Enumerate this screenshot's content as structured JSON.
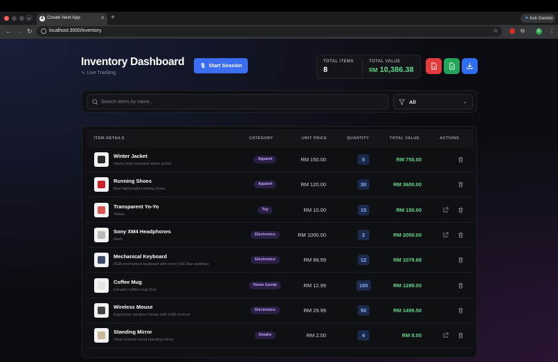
{
  "browser": {
    "tab_title": "Create Next App",
    "tab_favicon": "A",
    "url": "localhost:3000/inventory",
    "gemini_label": "Ask Gemini",
    "profile_initial": "E",
    "colors": {
      "close": "#ff5f57",
      "accent": "#8ab4f8"
    }
  },
  "header": {
    "title": "Inventory Dashboard",
    "subtitle": "Live Tracking",
    "start_session_label": "Start Session"
  },
  "stats": {
    "total_items_label": "TOTAL ITEMS",
    "total_items_value": "8",
    "total_value_label": "TOTAL VALUE",
    "total_value_currency": "RM",
    "total_value_amount": "10,386.38"
  },
  "export_buttons": {
    "pdf_icon": "pdf-file-icon",
    "excel_icon": "excel-file-icon",
    "download_icon": "download-icon",
    "colors": {
      "pdf": "#e23b3b",
      "excel": "#22a559",
      "download": "#2f6ef0"
    }
  },
  "search": {
    "placeholder": "Search items by name...",
    "value": "",
    "filter_value": "All"
  },
  "table": {
    "headers": {
      "item": "ITEM DETAILS",
      "category": "CATEGORY",
      "price": "UNIT PRICE",
      "quantity": "QUANTITY",
      "total": "TOTAL VALUE",
      "actions": "ACTIONS"
    },
    "rows": [
      {
        "name": "Winter Jacket",
        "desc": "Heavy-duty insulated winter jacket",
        "category": "Apparel",
        "price": "RM 150.00",
        "qty": "5",
        "total": "RM 750.00",
        "has_link": false,
        "thumb_color": "#2b2b2b"
      },
      {
        "name": "Running Shoes",
        "desc": "Blue lightweight running shoes",
        "category": "Apparel",
        "price": "RM 120.00",
        "qty": "30",
        "total": "RM 3600.00",
        "has_link": false,
        "thumb_color": "#c8232c"
      },
      {
        "name": "Transparent Yo-Yo",
        "desc": "Yellow",
        "category": "Toy",
        "price": "RM 10.00",
        "qty": "15",
        "total": "RM 150.00",
        "has_link": true,
        "thumb_color": "#d9534f"
      },
      {
        "name": "Sony XM4 Headphones",
        "desc": "black",
        "category": "Electronics",
        "price": "RM 1000.00",
        "qty": "2",
        "total": "RM 2000.00",
        "has_link": true,
        "thumb_color": "#b9b9b9"
      },
      {
        "name": "Mechanical Keyboard",
        "desc": "RGB mechanical keyboard with cherry MX blue switches",
        "category": "Electronics",
        "price": "RM 89.99",
        "qty": "12",
        "total": "RM 1079.88",
        "has_link": false,
        "thumb_color": "#3c4b66"
      },
      {
        "name": "Coffee Mug",
        "desc": "Ceramic coffee mug 11oz",
        "category": "Home Goods",
        "price": "RM 12.99",
        "qty": "100",
        "total": "RM 1299.00",
        "has_link": false,
        "thumb_color": "#e4e4e4"
      },
      {
        "name": "Wireless Mouse",
        "desc": "Ergonomic wireless mouse with USB receiver",
        "category": "Electronics",
        "price": "RM 29.99",
        "qty": "50",
        "total": "RM 1499.50",
        "has_link": false,
        "thumb_color": "#444444"
      },
      {
        "name": "Standing Mirror",
        "desc": "Silver-framed round standing mirror",
        "category": "Details",
        "price": "RM 2.00",
        "qty": "4",
        "total": "RM 8.00",
        "has_link": true,
        "thumb_color": "#c9b89a"
      }
    ]
  }
}
